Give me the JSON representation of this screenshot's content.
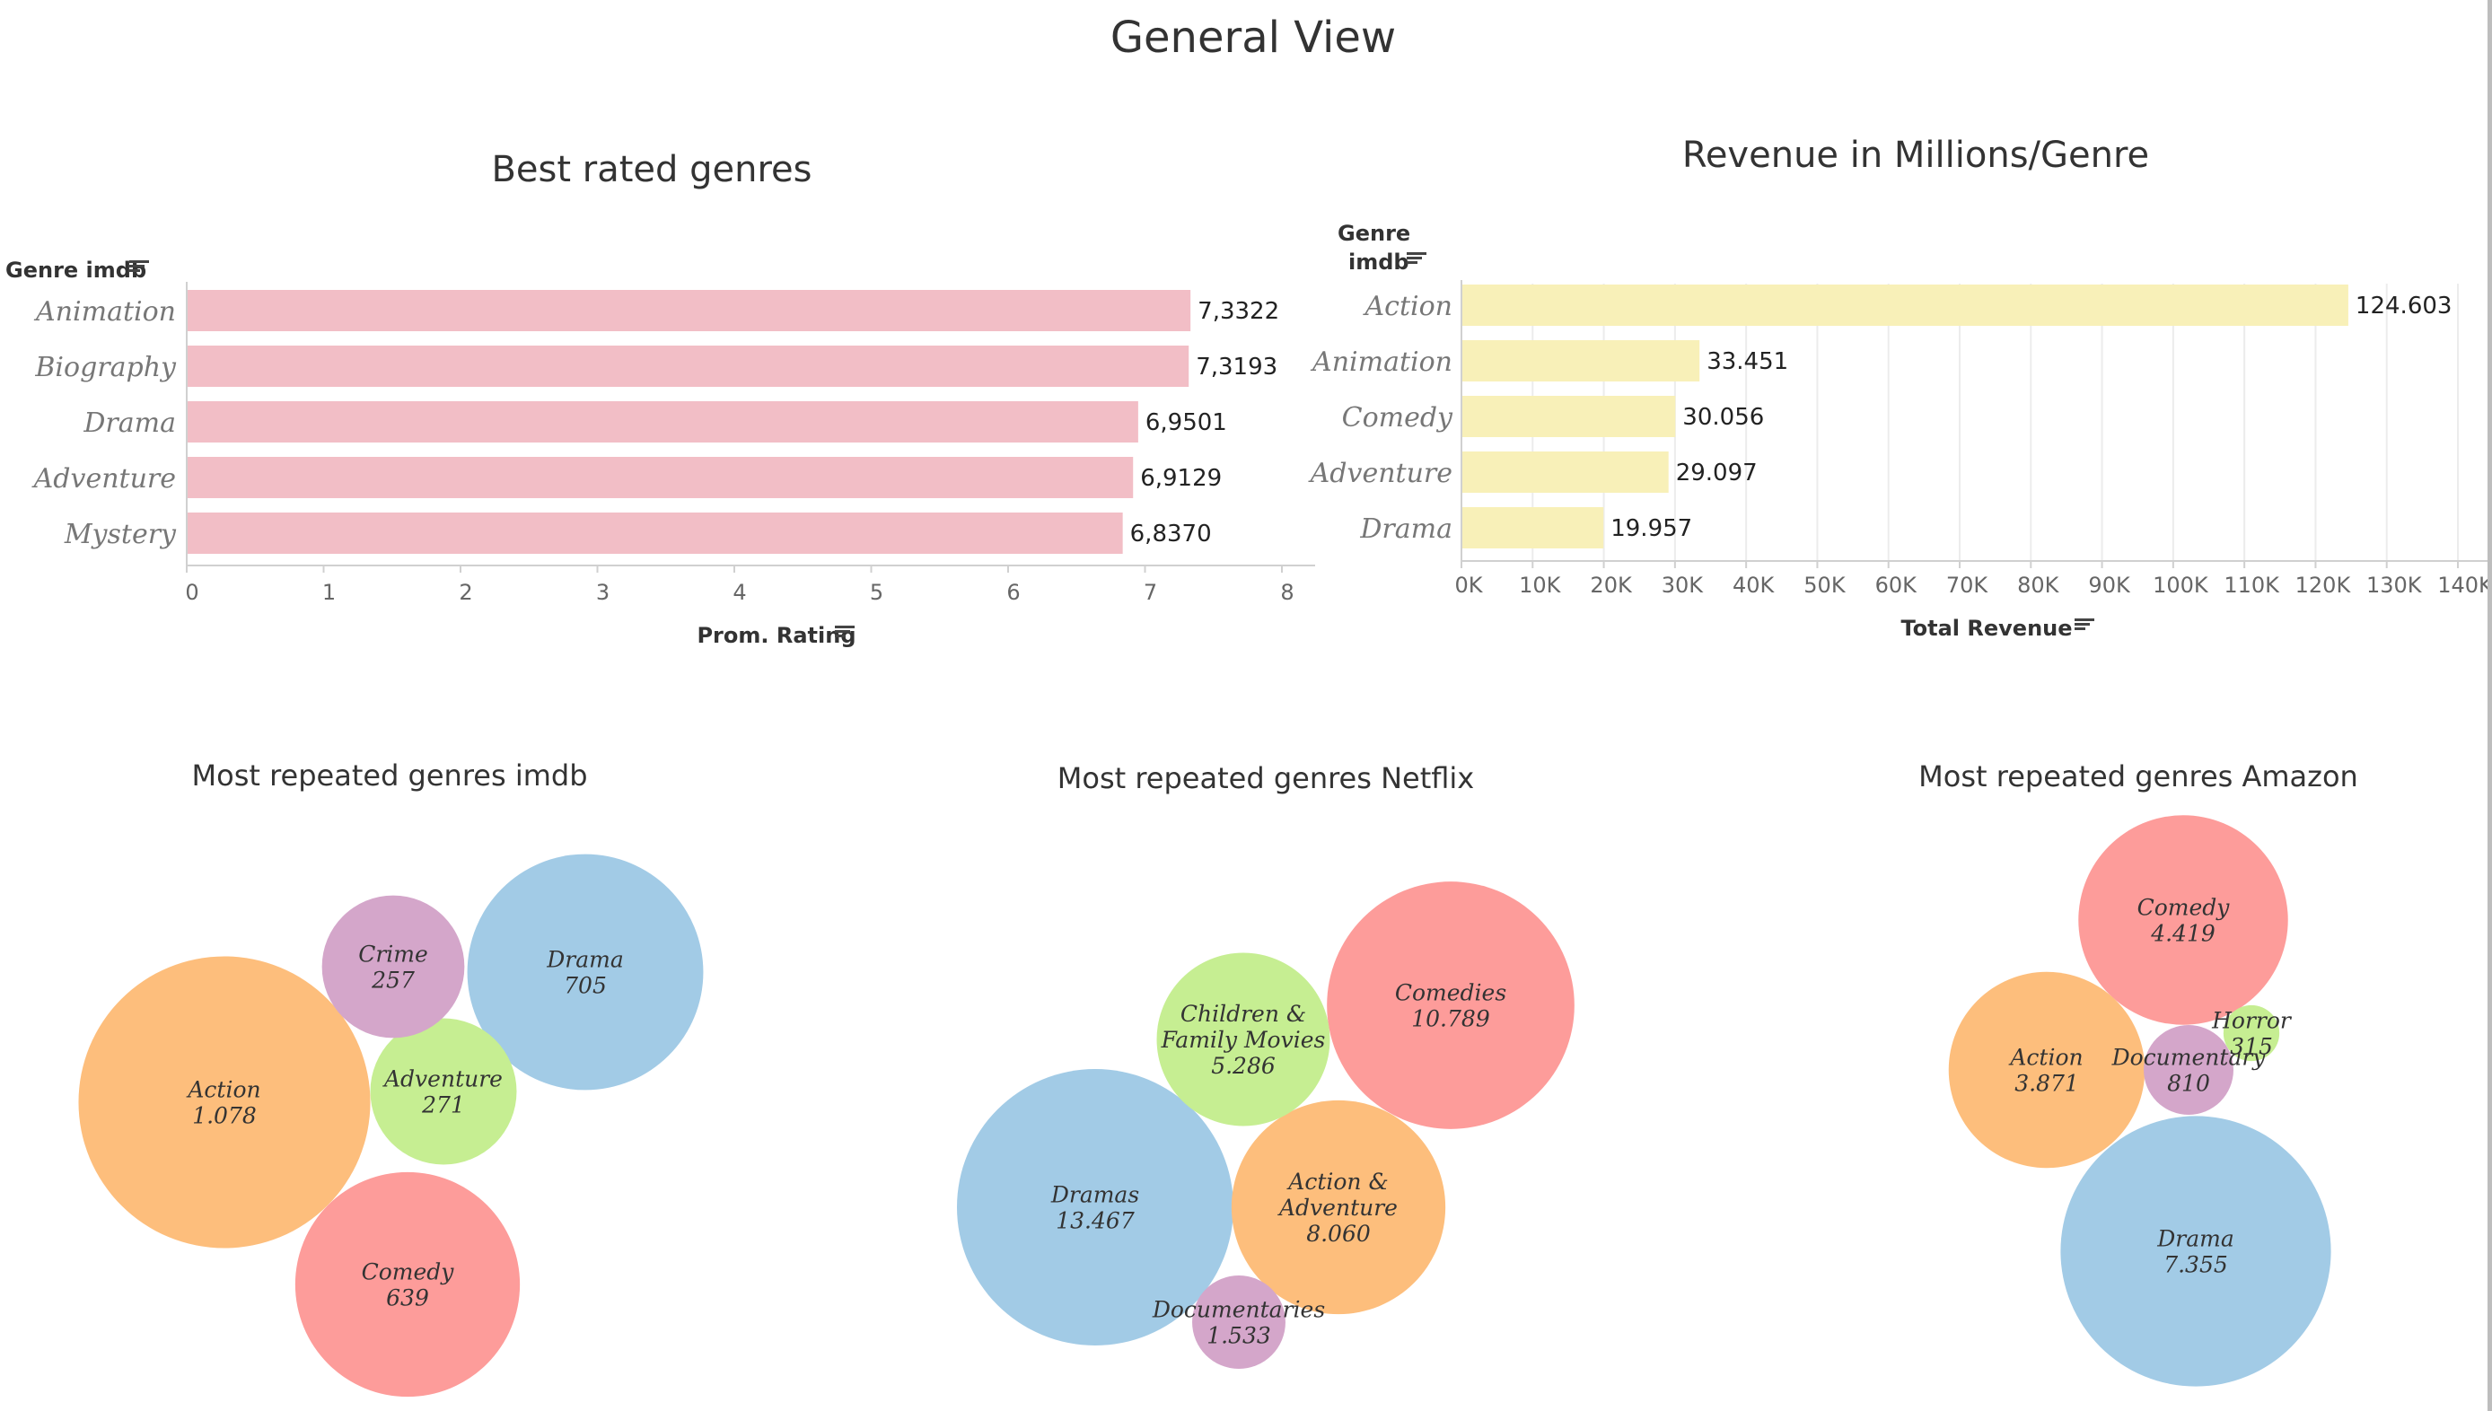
{
  "dashboard": {
    "title": "General View"
  },
  "chart_data": [
    {
      "type": "bar",
      "orientation": "horizontal",
      "title": "Best rated genres",
      "ylabel": "Genre imdb",
      "xlabel": "Prom. Rating",
      "categories": [
        "Animation",
        "Biography",
        "Drama",
        "Adventure",
        "Mystery"
      ],
      "values": [
        7.3322,
        7.3193,
        6.9501,
        6.9129,
        6.837
      ],
      "value_labels": [
        "7,3322",
        "7,3193",
        "6,9501",
        "6,9129",
        "6,8370"
      ],
      "xlim": [
        0,
        8
      ],
      "ticks": [
        "0",
        "1",
        "2",
        "3",
        "4",
        "5",
        "6",
        "7",
        "8"
      ],
      "color": "#f2bec6",
      "grid": false
    },
    {
      "type": "bar",
      "orientation": "horizontal",
      "title": "Revenue in Millions/Genre",
      "ylabel": "Genre imdb",
      "xlabel": "Total Revenue",
      "categories": [
        "Action",
        "Animation",
        "Comedy",
        "Adventure",
        "Drama"
      ],
      "values": [
        124603,
        33451,
        30056,
        29097,
        19957
      ],
      "value_labels": [
        "124.603",
        "33.451",
        "30.056",
        "29.097",
        "19.957"
      ],
      "xlim": [
        0,
        140000
      ],
      "ticks": [
        "0K",
        "10K",
        "20K",
        "30K",
        "40K",
        "50K",
        "60K",
        "70K",
        "80K",
        "90K",
        "100K",
        "110K",
        "120K",
        "130K",
        "140K"
      ],
      "color": "#f8f0b8",
      "grid": true
    },
    {
      "type": "bubble",
      "title": "Most repeated genres imdb",
      "bubbles": [
        {
          "name": "Action",
          "value": 1078,
          "label": "1.078",
          "color": "#fdbe7c"
        },
        {
          "name": "Drama",
          "value": 705,
          "label": "705",
          "color": "#a2cbe6"
        },
        {
          "name": "Comedy",
          "value": 639,
          "label": "639",
          "color": "#fd9c9a"
        },
        {
          "name": "Adventure",
          "value": 271,
          "label": "271",
          "color": "#c6ee92"
        },
        {
          "name": "Crime",
          "value": 257,
          "label": "257",
          "color": "#d4a6ca"
        }
      ]
    },
    {
      "type": "bubble",
      "title": "Most repeated genres Netflix",
      "bubbles": [
        {
          "name": "Dramas",
          "value": 13467,
          "label": "13.467",
          "color": "#a2cbe6"
        },
        {
          "name": "Comedies",
          "value": 10789,
          "label": "10.789",
          "color": "#fd9c9a"
        },
        {
          "name": "Action & Adventure",
          "value": 8060,
          "label": "8.060",
          "color": "#fdbe7c"
        },
        {
          "name": "Children & Family Movies",
          "value": 5286,
          "label": "5.286",
          "color": "#c6ee92"
        },
        {
          "name": "Documentaries",
          "value": 1533,
          "label": "1.533",
          "color": "#d4a6ca"
        }
      ]
    },
    {
      "type": "bubble",
      "title": "Most repeated genres Amazon",
      "bubbles": [
        {
          "name": "Drama",
          "value": 7355,
          "label": "7.355",
          "color": "#a2cbe6"
        },
        {
          "name": "Comedy",
          "value": 4419,
          "label": "4.419",
          "color": "#fd9c9a"
        },
        {
          "name": "Action",
          "value": 3871,
          "label": "3.871",
          "color": "#fdbe7c"
        },
        {
          "name": "Documentary",
          "value": 810,
          "label": "810",
          "color": "#d4a6ca"
        },
        {
          "name": "Horror",
          "value": 315,
          "label": "315",
          "color": "#c6ee92"
        }
      ]
    }
  ]
}
